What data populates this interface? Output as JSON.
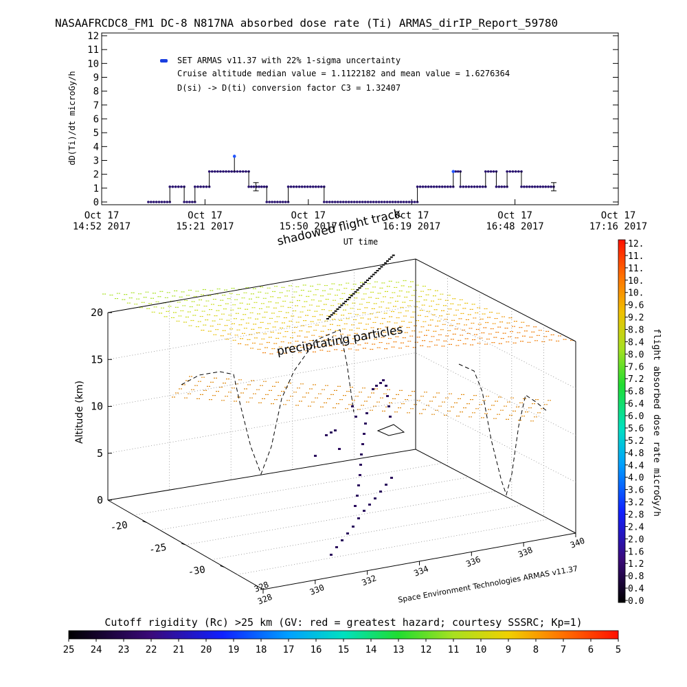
{
  "title": "NASAAFRCDC8_FM1 DC-8   N817NA absorbed dose rate (Ti) ARMAS_dirIP_Report_59780",
  "chart_data": [
    {
      "type": "scatter",
      "name": "dose_rate_time_series",
      "ylabel": "dD(Ti)/dt microGy/h",
      "xlabel": "UT time",
      "ylim": [
        0,
        12
      ],
      "yticks": [
        "0",
        "1",
        "2",
        "3",
        "4",
        "5",
        "6",
        "7",
        "8",
        "9",
        "10",
        "11",
        "12"
      ],
      "xticks": [
        {
          "date": "Oct 17",
          "time": "14:52 2017"
        },
        {
          "date": "Oct 17",
          "time": "15:21 2017"
        },
        {
          "date": "Oct 17",
          "time": "15:50 2017"
        },
        {
          "date": "Oct 17",
          "time": "16:19 2017"
        },
        {
          "date": "Oct 17",
          "time": "16:48 2017"
        },
        {
          "date": "Oct 17",
          "time": "17:16 2017"
        }
      ],
      "legend": [
        "SET ARMAS v11.37 with 22% 1-sigma uncertainty",
        "Cruise altitude median value = 1.1122182 and mean value = 1.6276364",
        "D(si) -> D(ti) conversion factor C3 = 1.32407"
      ],
      "segments": [
        {
          "t0": "15:05",
          "t1": "15:11",
          "value": 0
        },
        {
          "t0": "15:11",
          "t1": "15:15",
          "value": 1.1
        },
        {
          "t0": "15:15",
          "t1": "15:18",
          "value": 0
        },
        {
          "t0": "15:18",
          "t1": "15:22",
          "value": 1.1
        },
        {
          "t0": "15:22",
          "t1": "15:29",
          "value": 2.2
        },
        {
          "t0": "15:29",
          "t1": "15:33",
          "value": 2.2
        },
        {
          "t0": "15:33",
          "t1": "15:38",
          "value": 1.1
        },
        {
          "t0": "15:38",
          "t1": "15:44",
          "value": 0
        },
        {
          "t0": "15:44",
          "t1": "15:54",
          "value": 1.1
        },
        {
          "t0": "15:54",
          "t1": "16:20",
          "value": 0
        },
        {
          "t0": "16:20",
          "t1": "16:30",
          "value": 1.1
        },
        {
          "t0": "16:30",
          "t1": "16:32",
          "value": 2.2
        },
        {
          "t0": "16:32",
          "t1": "16:39",
          "value": 1.1
        },
        {
          "t0": "16:39",
          "t1": "16:42",
          "value": 2.2
        },
        {
          "t0": "16:42",
          "t1": "16:45",
          "value": 1.1
        },
        {
          "t0": "16:45",
          "t1": "16:49",
          "value": 2.2
        },
        {
          "t0": "16:49",
          "t1": "16:58",
          "value": 1.1
        }
      ],
      "peaks": [
        {
          "t": "15:29",
          "value": 3.3
        },
        {
          "t": "16:30",
          "value": 2.2
        }
      ],
      "error_bars": [
        {
          "t": "15:35",
          "value": 1.1
        },
        {
          "t": "16:58",
          "value": 1.1
        }
      ],
      "colors": {
        "point": "#2a1470",
        "peak": "#2255ff",
        "legend_marker": "#1a3fe0"
      }
    },
    {
      "type": "scatter",
      "name": "3d_flight_track",
      "zlabel": "Altitude (km)",
      "zticks": [
        "0",
        "5",
        "10",
        "15",
        "20"
      ],
      "lat_ticks": [
        "-20",
        "-25",
        "-30"
      ],
      "lon_ticks": [
        "328",
        "330",
        "332",
        "334",
        "336",
        "338",
        "340"
      ],
      "annotations": {
        "shadowed": "shadowed flight track",
        "precipitating": "precipitating particles",
        "footer": "Space Environment Technologies ARMAS v11.37"
      }
    },
    {
      "type": "heatmap",
      "name": "dose_rate_colorbar",
      "label": "flight absorbed dose rate microGy/h",
      "ticks": [
        "12.",
        "11.",
        "11.",
        "10.",
        "10.",
        "9.6",
        "9.2",
        "8.8",
        "8.4",
        "8.0",
        "7.6",
        "7.2",
        "6.8",
        "6.4",
        "6.0",
        "5.6",
        "5.2",
        "4.8",
        "4.4",
        "4.0",
        "3.6",
        "3.2",
        "2.8",
        "2.4",
        "2.0",
        "1.6",
        "1.2",
        "0.8",
        "0.4",
        "0.0"
      ]
    },
    {
      "type": "heatmap",
      "name": "cutoff_rigidity_colorbar",
      "label": "Cutoff rigidity (Rc) >25 km (GV: red = greatest hazard; courtesy SSSRC; Kp=1)",
      "ticks": [
        "25",
        "24",
        "23",
        "22",
        "21",
        "20",
        "19",
        "18",
        "17",
        "16",
        "15",
        "14",
        "13",
        "12",
        "11",
        "10",
        "9",
        "8",
        "7",
        "6",
        "5"
      ]
    }
  ]
}
